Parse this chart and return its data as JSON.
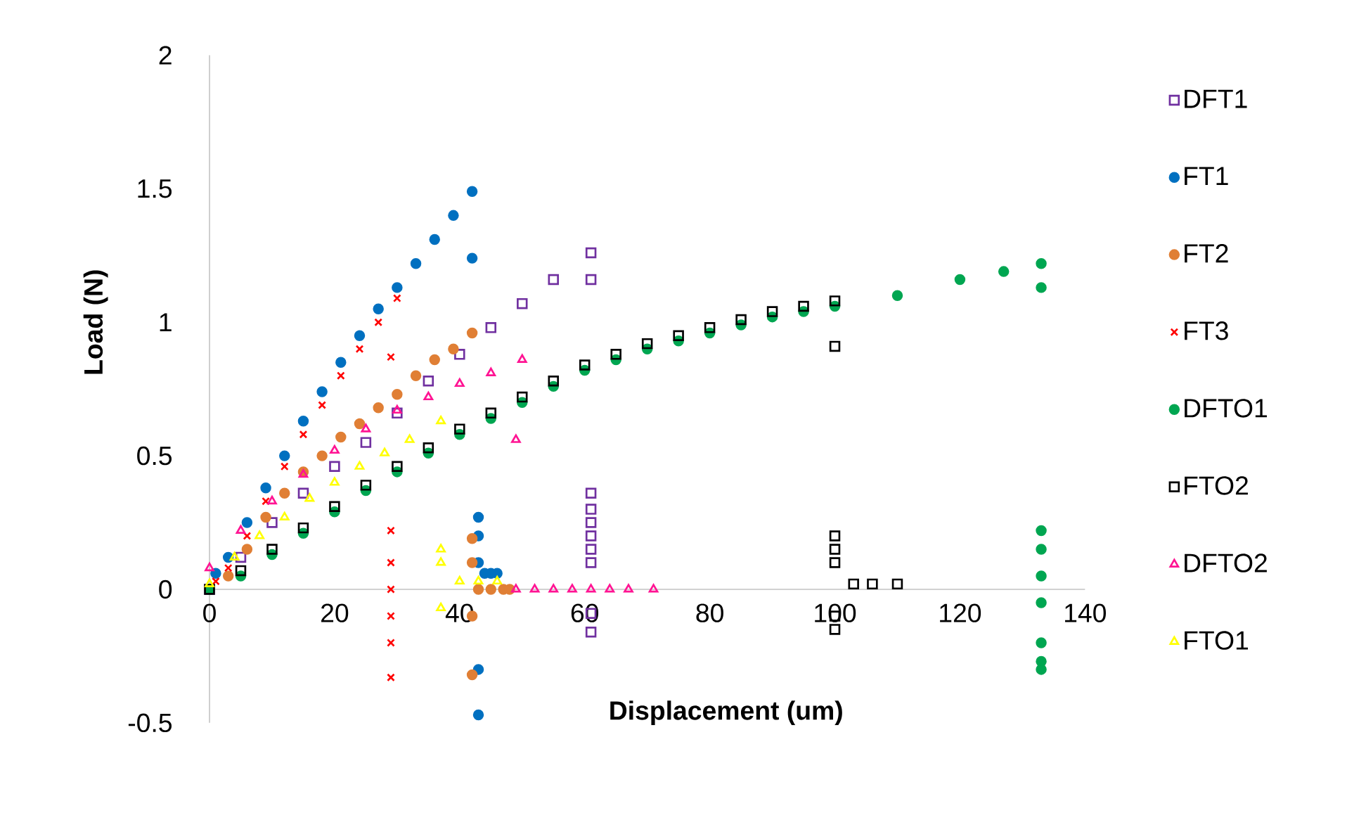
{
  "chart_data": {
    "type": "scatter",
    "xlabel": "Displacement (um)",
    "ylabel": "Load (N)",
    "xlim": [
      0,
      140
    ],
    "ylim": [
      -0.5,
      2
    ],
    "xticks": [
      0,
      20,
      40,
      60,
      80,
      100,
      120,
      140
    ],
    "yticks": [
      -0.5,
      0,
      0.5,
      1,
      1.5,
      2
    ],
    "legend": "right",
    "series": [
      {
        "name": "DFT1",
        "color": "#7030a0",
        "marker": "square",
        "x": [
          0,
          5,
          10,
          15,
          20,
          25,
          30,
          35,
          40,
          45,
          50,
          55,
          61,
          61,
          61,
          61,
          61,
          61,
          61,
          61,
          61,
          61
        ],
        "values": [
          0,
          0.12,
          0.25,
          0.36,
          0.46,
          0.55,
          0.66,
          0.78,
          0.88,
          0.98,
          1.07,
          1.16,
          1.26,
          1.16,
          0.36,
          0.3,
          0.25,
          0.2,
          0.15,
          0.1,
          -0.09,
          -0.16
        ]
      },
      {
        "name": "FT1",
        "color": "#0070c0",
        "marker": "circle",
        "x": [
          1,
          3,
          6,
          9,
          12,
          15,
          18,
          21,
          24,
          27,
          30,
          33,
          36,
          39,
          42,
          42,
          43,
          43,
          43,
          43,
          43,
          44,
          45,
          46
        ],
        "values": [
          0.06,
          0.12,
          0.25,
          0.38,
          0.5,
          0.63,
          0.74,
          0.85,
          0.95,
          1.05,
          1.13,
          1.22,
          1.31,
          1.4,
          1.49,
          1.24,
          0.27,
          0.2,
          0.1,
          -0.3,
          -0.47,
          0.06,
          0.06,
          0.06
        ]
      },
      {
        "name": "FT2",
        "color": "#e07f35",
        "marker": "circle",
        "x": [
          0,
          3,
          6,
          9,
          12,
          15,
          18,
          21,
          24,
          27,
          30,
          33,
          36,
          39,
          42,
          42,
          42,
          42,
          42,
          43,
          45,
          47,
          48
        ],
        "values": [
          0,
          0.05,
          0.15,
          0.27,
          0.36,
          0.44,
          0.5,
          0.57,
          0.62,
          0.68,
          0.73,
          0.8,
          0.86,
          0.9,
          0.96,
          0.19,
          0.1,
          -0.1,
          -0.32,
          0,
          0,
          0,
          0
        ]
      },
      {
        "name": "FT3",
        "color": "#ff0000",
        "marker": "cross",
        "x": [
          1,
          3,
          6,
          9,
          12,
          15,
          18,
          21,
          24,
          27,
          30,
          29,
          29,
          29,
          29,
          29,
          29,
          29
        ],
        "values": [
          0.03,
          0.08,
          0.2,
          0.33,
          0.46,
          0.58,
          0.69,
          0.8,
          0.9,
          1.0,
          1.09,
          0.87,
          0.22,
          0.1,
          0,
          -0.1,
          -0.2,
          -0.33
        ]
      },
      {
        "name": "DFTO1",
        "color": "#00a651",
        "marker": "circle",
        "x": [
          0,
          5,
          10,
          15,
          20,
          25,
          30,
          35,
          40,
          45,
          50,
          55,
          60,
          65,
          70,
          75,
          80,
          85,
          90,
          95,
          100,
          110,
          120,
          127,
          133,
          133,
          133,
          133,
          133,
          133,
          133,
          133,
          133
        ],
        "values": [
          0,
          0.05,
          0.13,
          0.21,
          0.29,
          0.37,
          0.44,
          0.51,
          0.58,
          0.64,
          0.7,
          0.76,
          0.82,
          0.86,
          0.9,
          0.93,
          0.96,
          0.99,
          1.02,
          1.04,
          1.06,
          1.1,
          1.16,
          1.19,
          1.22,
          1.13,
          0.22,
          0.15,
          0.05,
          -0.05,
          -0.2,
          -0.27,
          -0.3
        ]
      },
      {
        "name": "FTO2",
        "color": "#000000",
        "marker": "square",
        "x": [
          0,
          5,
          10,
          15,
          20,
          25,
          30,
          35,
          40,
          45,
          50,
          55,
          60,
          65,
          70,
          75,
          80,
          85,
          90,
          95,
          100,
          100,
          100,
          100,
          100,
          100,
          100,
          103,
          106,
          110
        ],
        "values": [
          0,
          0.07,
          0.15,
          0.23,
          0.31,
          0.39,
          0.46,
          0.53,
          0.6,
          0.66,
          0.72,
          0.78,
          0.84,
          0.88,
          0.92,
          0.95,
          0.98,
          1.01,
          1.04,
          1.06,
          1.08,
          0.91,
          0.2,
          0.15,
          0.1,
          -0.1,
          -0.15,
          0.02,
          0.02,
          0.02
        ]
      },
      {
        "name": "DFTO2",
        "color": "#ff1493",
        "marker": "triangle",
        "x": [
          0,
          5,
          10,
          15,
          20,
          25,
          30,
          35,
          40,
          45,
          50,
          49,
          49,
          52,
          55,
          58,
          61,
          64,
          67,
          71
        ],
        "values": [
          0.08,
          0.22,
          0.33,
          0.43,
          0.52,
          0.6,
          0.67,
          0.72,
          0.77,
          0.81,
          0.86,
          0.56,
          0,
          0,
          0,
          0,
          0,
          0,
          0,
          0
        ]
      },
      {
        "name": "FTO1",
        "color": "#ffff00",
        "marker": "triangle",
        "x": [
          0,
          4,
          8,
          12,
          16,
          20,
          24,
          28,
          32,
          37,
          37,
          37,
          37,
          40,
          43,
          46
        ],
        "values": [
          0.02,
          0.12,
          0.2,
          0.27,
          0.34,
          0.4,
          0.46,
          0.51,
          0.56,
          0.63,
          0.15,
          0.1,
          -0.07,
          0.03,
          0.03,
          0.03
        ]
      }
    ]
  }
}
